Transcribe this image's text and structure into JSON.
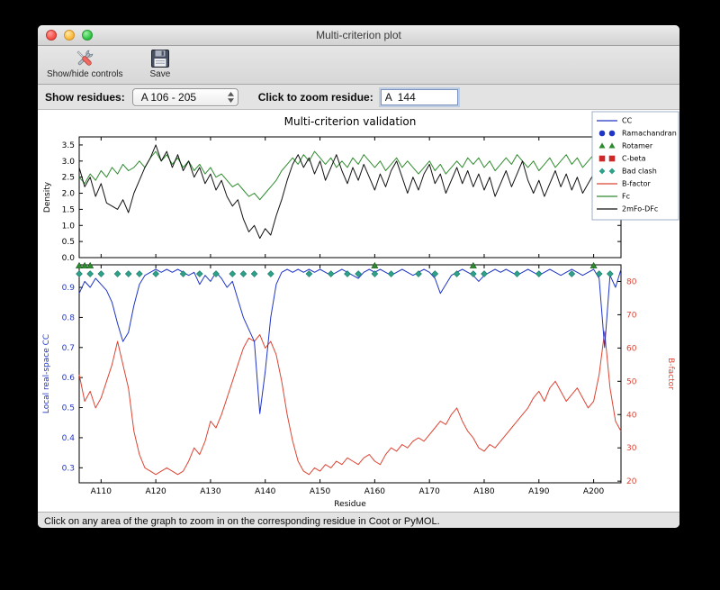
{
  "window": {
    "title": "Multi-criterion plot",
    "toolbar": {
      "show_hide_label": "Show/hide controls",
      "save_label": "Save"
    },
    "controls": {
      "show_residues_label": "Show residues:",
      "residue_range_value": "A 106 - 205",
      "zoom_label": "Click to zoom residue:",
      "zoom_value": "A  144"
    },
    "status": "Click on any area of the graph to zoom in on the corresponding residue in Coot or PyMOL."
  },
  "chart_data": {
    "type": "line",
    "title": "Multi-criterion validation",
    "xlabel": "Residue",
    "x_start": 106,
    "x_end": 205,
    "x_ticks": [
      110,
      120,
      130,
      140,
      150,
      160,
      170,
      180,
      190,
      200
    ],
    "x_tick_labels": [
      "A110",
      "A120",
      "A130",
      "A140",
      "A150",
      "A160",
      "A170",
      "A180",
      "A190",
      "A200"
    ],
    "top": {
      "ylabel": "Density",
      "ylim": [
        0.0,
        3.75
      ],
      "yticks": [
        0.0,
        0.5,
        1.0,
        1.5,
        2.0,
        2.5,
        3.0,
        3.5
      ],
      "series": [
        {
          "name": "Fc",
          "color": "#2e8b2e",
          "values": [
            2.5,
            2.3,
            2.6,
            2.4,
            2.7,
            2.5,
            2.8,
            2.6,
            2.9,
            2.7,
            2.8,
            3.0,
            2.8,
            3.1,
            3.3,
            3.0,
            3.2,
            2.9,
            3.1,
            2.8,
            3.0,
            2.7,
            2.9,
            2.6,
            2.8,
            2.5,
            2.6,
            2.4,
            2.2,
            2.3,
            2.1,
            1.9,
            2.0,
            1.8,
            2.0,
            2.2,
            2.4,
            2.7,
            2.9,
            3.1,
            2.9,
            3.2,
            3.0,
            3.3,
            3.1,
            2.9,
            3.1,
            2.8,
            3.0,
            2.8,
            3.1,
            2.9,
            3.2,
            3.0,
            2.8,
            3.0,
            2.7,
            2.9,
            3.1,
            2.8,
            3.0,
            2.8,
            2.6,
            2.8,
            3.0,
            2.7,
            2.9,
            2.6,
            2.8,
            3.0,
            2.8,
            3.1,
            2.9,
            3.1,
            2.8,
            3.0,
            2.7,
            2.9,
            3.1,
            2.9,
            3.2,
            3.0,
            2.8,
            3.0,
            2.7,
            2.9,
            3.1,
            2.8,
            3.0,
            3.2,
            2.9,
            3.1,
            2.8,
            3.0,
            3.2,
            2.9,
            2.7,
            3.0,
            2.8,
            3.1
          ]
        },
        {
          "name": "2mFo-DFc",
          "color": "#111111",
          "values": [
            2.8,
            2.2,
            2.5,
            1.9,
            2.3,
            1.7,
            1.6,
            1.5,
            1.8,
            1.4,
            2.0,
            2.4,
            2.8,
            3.1,
            3.5,
            3.0,
            3.3,
            2.8,
            3.2,
            2.7,
            3.0,
            2.5,
            2.8,
            2.3,
            2.6,
            2.1,
            2.4,
            1.9,
            1.6,
            1.8,
            1.2,
            0.8,
            1.0,
            0.6,
            0.9,
            0.7,
            1.3,
            1.8,
            2.4,
            2.9,
            3.2,
            2.8,
            3.1,
            2.6,
            3.0,
            2.4,
            2.8,
            3.2,
            2.7,
            2.3,
            2.8,
            2.4,
            2.9,
            2.5,
            2.1,
            2.6,
            2.2,
            2.7,
            3.0,
            2.5,
            2.0,
            2.5,
            2.1,
            2.6,
            2.9,
            2.3,
            2.6,
            2.0,
            2.4,
            2.8,
            2.3,
            2.7,
            2.2,
            2.6,
            2.1,
            2.5,
            1.9,
            2.3,
            2.7,
            2.2,
            2.6,
            3.0,
            2.4,
            2.0,
            2.4,
            1.9,
            2.3,
            2.7,
            2.2,
            2.6,
            2.1,
            2.5,
            2.0,
            2.3,
            2.6,
            2.2,
            1.8,
            2.4,
            2.0,
            2.5
          ]
        }
      ]
    },
    "bottom": {
      "left_ylabel": "Local real-space CC",
      "left_color": "#1f35c5",
      "left_ylim": [
        0.25,
        0.975
      ],
      "left_yticks": [
        0.3,
        0.4,
        0.5,
        0.6,
        0.7,
        0.8,
        0.9
      ],
      "right_ylabel": "B-factor",
      "right_color": "#dd4433",
      "right_ylim": [
        19.5,
        85
      ],
      "right_yticks": [
        20,
        30,
        40,
        50,
        60,
        70,
        80
      ],
      "cc_series": {
        "name": "CC",
        "color": "#1f35c5",
        "values": [
          0.88,
          0.92,
          0.9,
          0.93,
          0.91,
          0.89,
          0.85,
          0.78,
          0.72,
          0.75,
          0.84,
          0.91,
          0.94,
          0.95,
          0.96,
          0.95,
          0.96,
          0.95,
          0.96,
          0.95,
          0.94,
          0.95,
          0.91,
          0.94,
          0.92,
          0.95,
          0.93,
          0.9,
          0.92,
          0.86,
          0.8,
          0.76,
          0.72,
          0.48,
          0.62,
          0.8,
          0.91,
          0.95,
          0.96,
          0.95,
          0.96,
          0.95,
          0.96,
          0.95,
          0.96,
          0.95,
          0.94,
          0.95,
          0.96,
          0.95,
          0.94,
          0.93,
          0.95,
          0.96,
          0.95,
          0.96,
          0.95,
          0.94,
          0.95,
          0.96,
          0.95,
          0.94,
          0.95,
          0.96,
          0.95,
          0.93,
          0.88,
          0.91,
          0.94,
          0.95,
          0.96,
          0.95,
          0.94,
          0.92,
          0.94,
          0.95,
          0.96,
          0.95,
          0.96,
          0.95,
          0.94,
          0.95,
          0.96,
          0.95,
          0.94,
          0.95,
          0.96,
          0.95,
          0.94,
          0.95,
          0.96,
          0.95,
          0.94,
          0.95,
          0.96,
          0.93,
          0.7,
          0.94,
          0.9,
          0.96
        ]
      },
      "bfactor_series": {
        "name": "B-factor",
        "color": "#dd4433",
        "values": [
          52,
          44,
          47,
          42,
          45,
          50,
          55,
          62,
          55,
          48,
          35,
          28,
          24,
          23,
          22,
          23,
          24,
          23,
          22,
          23,
          26,
          30,
          28,
          32,
          38,
          36,
          40,
          45,
          50,
          55,
          60,
          63,
          62,
          64,
          60,
          62,
          58,
          50,
          40,
          32,
          26,
          23,
          22,
          24,
          23,
          25,
          24,
          26,
          25,
          27,
          26,
          25,
          27,
          28,
          26,
          25,
          28,
          30,
          29,
          31,
          30,
          32,
          33,
          32,
          34,
          36,
          38,
          37,
          40,
          42,
          38,
          35,
          33,
          30,
          29,
          31,
          30,
          32,
          34,
          36,
          38,
          40,
          42,
          45,
          47,
          44,
          48,
          50,
          47,
          44,
          46,
          48,
          45,
          42,
          44,
          52,
          65,
          48,
          38,
          35
        ]
      },
      "markers": {
        "bad_clash": {
          "shape": "diamond",
          "color": "#2fa089",
          "cc_y": 0.945,
          "residues": [
            106,
            108,
            110,
            113,
            115,
            117,
            120,
            125,
            128,
            131,
            134,
            136,
            138,
            141,
            148,
            152,
            155,
            157,
            160,
            163,
            168,
            171,
            175,
            178,
            180,
            186,
            190,
            196,
            201,
            203
          ]
        },
        "rotamer": {
          "shape": "triangle",
          "color": "#2e8b2e",
          "cc_y": 0.972,
          "residues": [
            106,
            107,
            108,
            160,
            178,
            200
          ]
        }
      }
    },
    "legend": [
      {
        "label": "CC",
        "type": "line",
        "color": "#1f35c5"
      },
      {
        "label": "Ramachandran",
        "type": "circles",
        "color": "#1f35c5"
      },
      {
        "label": "Rotamer",
        "type": "triangles",
        "color": "#2e8b2e"
      },
      {
        "label": "C-beta",
        "type": "squares",
        "color": "#cc2a2a"
      },
      {
        "label": "Bad clash",
        "type": "diamonds",
        "color": "#2fa089"
      },
      {
        "label": "B-factor",
        "type": "line",
        "color": "#dd4433"
      },
      {
        "label": "Fc",
        "type": "line",
        "color": "#2e8b2e"
      },
      {
        "label": "2mFo-DFc",
        "type": "line",
        "color": "#111111"
      }
    ]
  }
}
